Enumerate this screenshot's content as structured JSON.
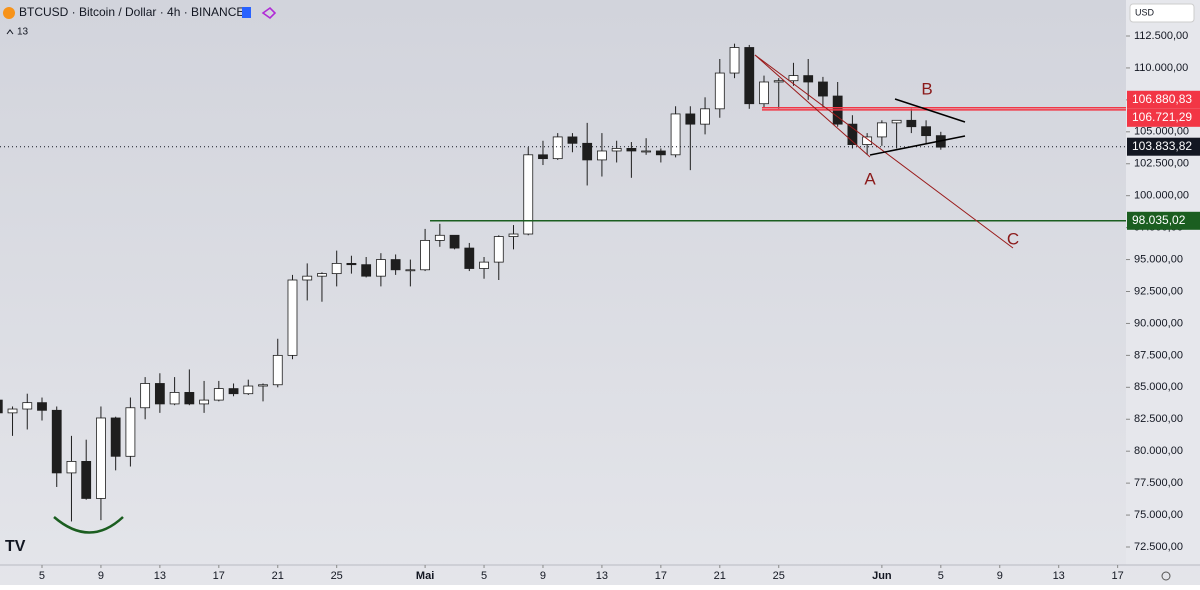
{
  "chart_data": {
    "type": "candlestick",
    "title": "BTCUSD · Bitcoin / Dollar · 4h · BINANCE",
    "indicator_count": 13,
    "currency": "USD",
    "x": [
      1,
      2,
      3,
      4,
      5,
      6,
      7,
      8,
      9,
      10,
      11,
      12,
      13,
      14,
      15,
      16,
      17,
      18,
      19,
      20,
      21,
      22,
      23,
      24,
      25,
      26,
      27,
      28,
      29,
      30,
      31,
      32,
      33,
      34,
      35,
      36,
      37,
      38,
      39,
      40,
      41,
      42,
      43,
      44,
      45,
      46,
      47,
      48,
      49,
      50,
      51,
      52,
      53,
      54,
      55,
      56,
      57,
      58,
      59,
      60,
      61,
      62,
      63,
      64,
      65
    ],
    "open": [
      84000,
      83000,
      83300,
      83800,
      83200,
      78300,
      79200,
      76300,
      82600,
      79600,
      83400,
      85300,
      83700,
      84600,
      83700,
      84000,
      84900,
      84500,
      85100,
      85200,
      87500,
      93400,
      93700,
      93900,
      94700,
      94600,
      93700,
      95000,
      94200,
      94200,
      96500,
      96900,
      95900,
      94300,
      94800,
      96800,
      97000,
      103200,
      102900,
      104600,
      104100,
      102800,
      103500,
      103700,
      103500,
      103500,
      103200,
      106400,
      105600,
      106800,
      109600,
      111600,
      107200,
      108900,
      109000,
      109400,
      108900,
      107800,
      105600,
      104000,
      104600,
      105700,
      105900,
      105400,
      104700
    ],
    "high": [
      88500,
      83500,
      84500,
      84200,
      83500,
      81200,
      80900,
      83500,
      82700,
      84200,
      85800,
      86100,
      85800,
      86400,
      85500,
      85500,
      85300,
      85600,
      85300,
      88800,
      93800,
      94700,
      94000,
      95700,
      95300,
      95200,
      95500,
      95400,
      95000,
      97400,
      97800,
      96900,
      96300,
      95200,
      96900,
      97700,
      103800,
      104300,
      104900,
      104900,
      105700,
      104900,
      104300,
      104200,
      104500,
      103700,
      107000,
      107000,
      107700,
      110700,
      111900,
      111800,
      109400,
      109200,
      110400,
      110700,
      109300,
      108900,
      106300,
      104900,
      105900,
      105900,
      106800,
      105900,
      105000
    ],
    "low": [
      82000,
      81200,
      81700,
      82400,
      77200,
      74500,
      76200,
      74600,
      78500,
      78800,
      82500,
      83000,
      83600,
      83600,
      83000,
      83900,
      84300,
      84400,
      83900,
      85000,
      87200,
      91800,
      91700,
      92900,
      93900,
      93600,
      92900,
      93800,
      92900,
      94100,
      96000,
      95800,
      94100,
      93500,
      93400,
      95800,
      96900,
      102400,
      102800,
      103400,
      100800,
      101500,
      102600,
      101400,
      103200,
      102600,
      103000,
      102000,
      104800,
      106100,
      109200,
      106800,
      106900,
      106800,
      108600,
      107500,
      106900,
      105400,
      103700,
      103200,
      103900,
      103700,
      104900,
      104100,
      103600
    ],
    "close": [
      83000,
      83300,
      83800,
      83200,
      78300,
      79200,
      76300,
      82600,
      79600,
      83400,
      85300,
      83700,
      84600,
      83700,
      84000,
      84900,
      84500,
      85100,
      85200,
      87500,
      93400,
      93700,
      93900,
      94700,
      94600,
      93700,
      95000,
      94200,
      94200,
      96500,
      96900,
      95900,
      94300,
      94800,
      96800,
      97000,
      103200,
      102900,
      104600,
      104100,
      102800,
      103500,
      103700,
      103500,
      103500,
      103200,
      106400,
      105600,
      106800,
      109600,
      111600,
      107200,
      108900,
      109000,
      109400,
      108900,
      107800,
      105600,
      104000,
      104600,
      105700,
      105900,
      105400,
      104700,
      103800
    ],
    "up_color": "#ffffff",
    "down_color": "#1e1e1e",
    "xlim": [
      1.15,
      77.5
    ],
    "xticks": [
      {
        "value": 4,
        "label": "5"
      },
      {
        "value": 8,
        "label": "9"
      },
      {
        "value": 12,
        "label": "13"
      },
      {
        "value": 16,
        "label": "17"
      },
      {
        "value": 20,
        "label": "21"
      },
      {
        "value": 24,
        "label": "25"
      },
      {
        "value": 30,
        "label": "Mai"
      },
      {
        "value": 34,
        "label": "5"
      },
      {
        "value": 38,
        "label": "9"
      },
      {
        "value": 42,
        "label": "13"
      },
      {
        "value": 46,
        "label": "17"
      },
      {
        "value": 50,
        "label": "21"
      },
      {
        "value": 54,
        "label": "25"
      },
      {
        "value": 61,
        "label": "Jun"
      },
      {
        "value": 65,
        "label": "5"
      },
      {
        "value": 69,
        "label": "9"
      },
      {
        "value": 73,
        "label": "13"
      },
      {
        "value": 77,
        "label": "17"
      }
    ],
    "ylim": [
      71091,
      115318
    ],
    "yticks": [
      {
        "value": 72500,
        "label": "72.500,00"
      },
      {
        "value": 75000,
        "label": "75.000,00"
      },
      {
        "value": 77500,
        "label": "77.500,00"
      },
      {
        "value": 80000,
        "label": "80.000,00"
      },
      {
        "value": 82500,
        "label": "82.500,00"
      },
      {
        "value": 85000,
        "label": "85.000,00"
      },
      {
        "value": 87500,
        "label": "87.500,00"
      },
      {
        "value": 90000,
        "label": "90.000,00"
      },
      {
        "value": 92500,
        "label": "92.500,00"
      },
      {
        "value": 95000,
        "label": "95.000,00"
      },
      {
        "value": 97500,
        "label": "97.500,00"
      },
      {
        "value": 100000,
        "label": "100.000,00"
      },
      {
        "value": 102500,
        "label": "102.500,00"
      },
      {
        "value": 105000,
        "label": "105.000,00"
      },
      {
        "value": 107500,
        "label": "107.500,00"
      },
      {
        "value": 110000,
        "label": "110.000,00"
      },
      {
        "value": 112500,
        "label": "112.500,00"
      }
    ],
    "price_lines": [
      {
        "value": 106880.83,
        "label": "106.880,83",
        "color": "#f23645"
      },
      {
        "value": 106721.29,
        "label": "106.721,29",
        "color": "#f23645"
      },
      {
        "value": 98035.02,
        "label": "98.035,02",
        "color": "#1b5e20"
      },
      {
        "value": 103833.82,
        "label": "103.833,82",
        "color": "#131722"
      }
    ],
    "annotations": [
      "A",
      "B",
      "C"
    ]
  }
}
